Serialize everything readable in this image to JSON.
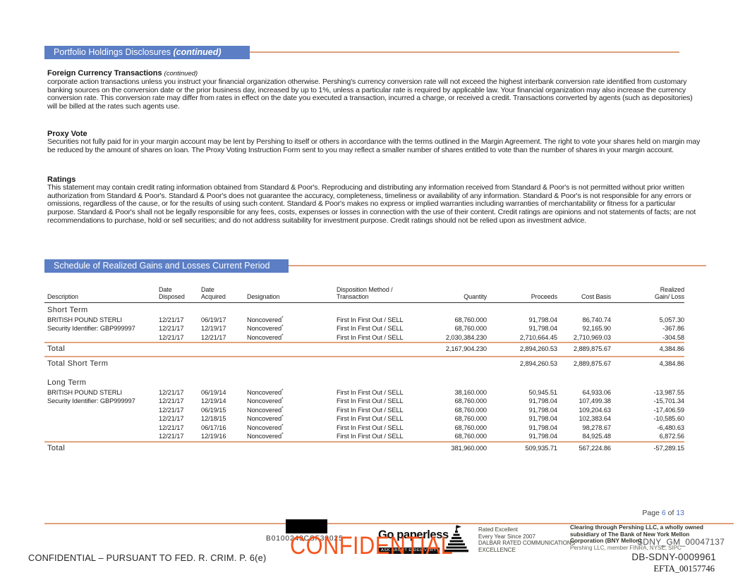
{
  "colors": {
    "banner_blue": "#5b7ec5",
    "rule_salmon": "#dfa07a",
    "table_rule_salmon": "#e3a47c",
    "header_rule_dark": "#2f2f2f",
    "watermark_orange": "#f4541d",
    "page_number_blue": "#4a6db8"
  },
  "banner1": {
    "title": "Portfolio Holdings Disclosures ",
    "suffix": "(continued)"
  },
  "disclosures": {
    "fct": {
      "heading": "Foreign Currency Transactions ",
      "suffix": "(continued)",
      "body": "corporate action transactions unless you instruct your financial organization otherwise. Pershing's currency conversion rate will not exceed the highest interbank conversion rate identified from customary banking sources on the conversion date or the prior business day, increased by up to 1%, unless a particular rate is required by applicable law. Your financial organization may also increase the currency conversion rate. This conversion rate may differ from rates in effect on the date you executed a transaction, incurred a charge, or received a credit. Transactions converted by agents (such as depositories) will be billed at the rates such agents use."
    },
    "proxy": {
      "heading": "Proxy Vote",
      "body": "Securities not fully paid for in your margin account may be lent by Pershing to itself or others in accordance with the terms outlined in the Margin Agreement. The right to vote your shares held on margin may be reduced by the amount of shares on loan. The Proxy Voting Instruction Form sent to you may reflect a smaller number of shares entitled to vote than the number of shares in your margin account."
    },
    "ratings": {
      "heading": "Ratings",
      "body": "This statement may contain credit rating information obtained from Standard & Poor's. Reproducing and distributing any information received from Standard & Poor's is not permitted without prior written authorization from Standard & Poor's. Standard & Poor's does not guarantee the accuracy, completeness, timeliness or availability of any information. Standard & Poor's is not responsible for any errors or omissions, regardless of the cause, or for the results of using such content. Standard & Poor's makes no express or implied warranties including warranties of merchantability or fitness for a particular purpose. Standard & Poor's shall not be legally responsible for any fees, costs, expenses or losses in connection with the use of their content. Credit ratings are opinions and not statements of facts; are not recommendations to purchase, hold or sell securities; and do not address suitability for investment purpose. Credit ratings should not be relied upon as investment advice."
    }
  },
  "banner2": {
    "title": "Schedule of Realized Gains and Losses Current Period"
  },
  "schedule": {
    "columns": [
      {
        "line1": "",
        "line2": "Description"
      },
      {
        "line1": "Date",
        "line2": "Disposed"
      },
      {
        "line1": "Date",
        "line2": "Acquired"
      },
      {
        "line1": "",
        "line2": "Designation"
      },
      {
        "line1": "",
        "line2": "Disposition Method / Transaction"
      },
      {
        "line1": "",
        "line2": "Quantity"
      },
      {
        "line1": "",
        "line2": "Proceeds"
      },
      {
        "line1": "",
        "line2": "Cost Basis"
      },
      {
        "line1": "Realized",
        "line2": "Gain/ Loss"
      }
    ],
    "groups": [
      {
        "label": "Short Term",
        "rows": [
          [
            "BRITISH POUND STERLI",
            "12/21/17",
            "06/19/17",
            "Noncovered*",
            "First In First Out / SELL",
            "68,760.000",
            "91,798.04",
            "86,740.74",
            "5,057.30"
          ],
          [
            "Security Identifier: GBP999997",
            "12/21/17",
            "12/19/17",
            "Noncovered*",
            "First In First Out / SELL",
            "68,760.000",
            "91,798.04",
            "92,165.90",
            "-367.86"
          ],
          [
            "",
            "12/21/17",
            "12/21/17",
            "Noncovered*",
            "First In First Out / SELL",
            "2,030,384.230",
            "2,710,664.45",
            "2,710,969.03",
            "-304.58"
          ]
        ],
        "total": {
          "label": "Total",
          "quantity": "2,167,904.230",
          "proceeds": "2,894,260.53",
          "cost_basis": "2,889,875.67",
          "gain_loss": "4,384.86"
        },
        "subtotal": {
          "label": "Total Short Term",
          "quantity": "",
          "proceeds": "2,894,260.53",
          "cost_basis": "2,889,875.67",
          "gain_loss": "4,384.86"
        }
      },
      {
        "label": "Long Term",
        "rows": [
          [
            "BRITISH POUND STERLI",
            "12/21/17",
            "06/19/14",
            "Noncovered*",
            "First In First Out / SELL",
            "38,160.000",
            "50,945.51",
            "64,933.06",
            "-13,987.55"
          ],
          [
            "Security Identifier: GBP999997",
            "12/21/17",
            "12/19/14",
            "Noncovered*",
            "First In First Out / SELL",
            "68,760.000",
            "91,798.04",
            "107,499.38",
            "-15,701.34"
          ],
          [
            "",
            "12/21/17",
            "06/19/15",
            "Noncovered*",
            "First In First Out / SELL",
            "68,760.000",
            "91,798.04",
            "109,204.63",
            "-17,406.59"
          ],
          [
            "",
            "12/21/17",
            "12/18/15",
            "Noncovered*",
            "First In First Out / SELL",
            "68,760.000",
            "91,798.04",
            "102,383.64",
            "-10,585.60"
          ],
          [
            "",
            "12/21/17",
            "06/17/16",
            "Noncovered*",
            "First In First Out / SELL",
            "68,760.000",
            "91,798.04",
            "98,278.67",
            "-6,480.63"
          ],
          [
            "",
            "12/21/17",
            "12/19/16",
            "Noncovered*",
            "First In First Out / SELL",
            "68,760.000",
            "91,798.04",
            "84,925.48",
            "6,872.56"
          ]
        ],
        "total": {
          "label": "Total",
          "quantity": "381,960.000",
          "proceeds": "509,935.71",
          "cost_basis": "567,224.86",
          "gain_loss": "-57,289.15"
        }
      }
    ]
  },
  "footer": {
    "page_label": "Page",
    "page_number": "6",
    "of_label": "of",
    "page_total": "13",
    "doc_code": "B0100243CSF30025",
    "go_paperless_title": "Go paperless",
    "go_paperless_sub": "ASK ABOUT E-DELIVERY",
    "dalbar": [
      "Rated Excellent",
      "Every Year Since 2007",
      "DALBAR RATED COMMUNICATIONS",
      "EXCELLENCE"
    ],
    "clearing": [
      "Clearing through Pershing LLC, a wholly owned",
      "subsidiary of The Bank of New York Mellon",
      "Corporation (BNY Mellon)"
    ],
    "clearing_member": "Pershing LLC, member FINRA, NYSE, SIPC",
    "sdny_gm": "SDNY_GM_00047137",
    "db_sdny": "DB-SDNY-0009961",
    "efta": "EFTA_00157746",
    "watermark": "CONFIDENTIAL",
    "legend": "CONFIDENTIAL – PURSUANT TO FED. R. CRIM. P. 6(e)"
  }
}
